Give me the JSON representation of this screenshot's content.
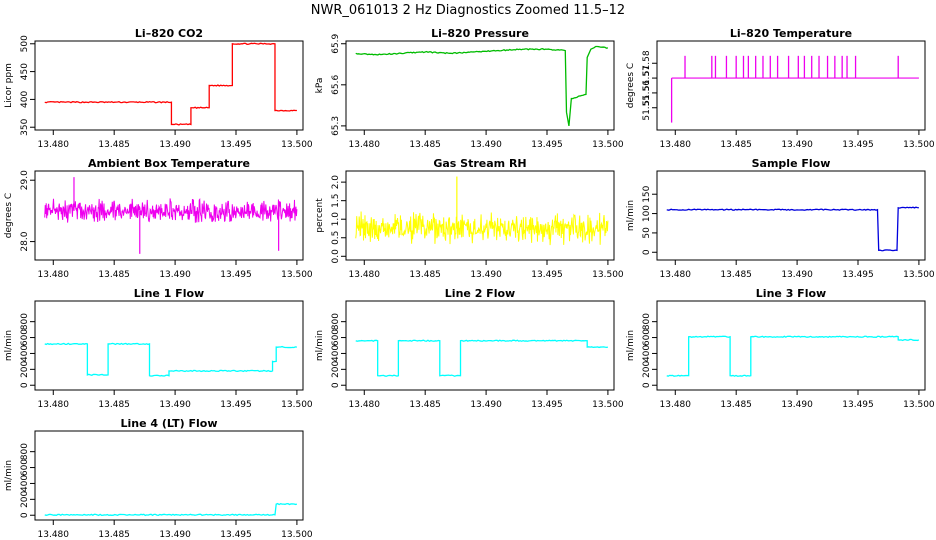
{
  "figure_title": "NWR_061013  2 Hz Diagnostics Zoomed 11.5–12",
  "x_ticks": [
    "13.480",
    "13.485",
    "13.490",
    "13.495",
    "13.500"
  ],
  "chart_data": [
    {
      "type": "line",
      "title": "Li–820 CO2",
      "ylabel": "Licor ppm",
      "color": "#ff0000",
      "xlim": [
        13.4785,
        13.5005
      ],
      "ylim": [
        345,
        505
      ],
      "yticks": [
        350,
        400,
        450,
        500
      ],
      "ytick_labels": [
        "350",
        "400",
        "450",
        "500"
      ],
      "x": [
        13.4793,
        13.4897,
        13.4897,
        13.4913,
        13.4913,
        13.4928,
        13.4928,
        13.4947,
        13.4947,
        13.4982,
        13.4982,
        13.5
      ],
      "y": [
        395,
        395,
        355,
        355,
        385,
        385,
        425,
        425,
        500,
        500,
        380,
        380
      ]
    },
    {
      "type": "line",
      "title": "Li–820 Pressure",
      "ylabel": "kPa",
      "color": "#00bb00",
      "xlim": [
        13.4785,
        13.5005
      ],
      "ylim": [
        65.27,
        65.92
      ],
      "yticks": [
        65.3,
        65.6,
        65.9
      ],
      "ytick_labels": [
        "65.3",
        "65.6",
        "65.9"
      ],
      "x": [
        13.4793,
        13.481,
        13.483,
        13.485,
        13.487,
        13.489,
        13.491,
        13.493,
        13.495,
        13.4965,
        13.4966,
        13.4968,
        13.497,
        13.4982,
        13.4983,
        13.4986,
        13.499,
        13.5
      ],
      "y": [
        65.83,
        65.82,
        65.83,
        65.84,
        65.83,
        65.84,
        65.85,
        65.86,
        65.86,
        65.85,
        65.4,
        65.3,
        65.5,
        65.53,
        65.8,
        65.86,
        65.88,
        65.87
      ]
    },
    {
      "type": "line",
      "title": "Li–820 Temperature",
      "ylabel": "degrees C",
      "color": "#ee00ee",
      "xlim": [
        13.4785,
        13.5005
      ],
      "ylim": [
        51.535,
        51.595
      ],
      "yticks": [
        51.55,
        51.56,
        51.57,
        51.58
      ],
      "ytick_labels": [
        "51.55",
        "51.56",
        "51.57",
        "51.58"
      ],
      "baseline": 51.57,
      "spikes_up": [
        13.4808,
        13.483,
        13.4833,
        13.4842,
        13.485,
        13.4856,
        13.486,
        13.4866,
        13.4872,
        13.4878,
        13.4884,
        13.4893,
        13.4901,
        13.4906,
        13.4912,
        13.4918,
        13.4925,
        13.4931,
        13.4937,
        13.4941,
        13.4948,
        13.4983
      ],
      "spikes_down": [
        13.4797
      ],
      "spike_top": 51.585,
      "spike_bottom": 51.54
    },
    {
      "type": "line",
      "title": "Ambient Box Temperature",
      "ylabel": "degrees C",
      "color": "#ee00ee",
      "xlim": [
        13.4785,
        13.5005
      ],
      "ylim": [
        27.7,
        29.15
      ],
      "yticks": [
        28.0,
        29.0
      ],
      "ytick_labels": [
        "28.0",
        "29.0"
      ],
      "mean": 28.5,
      "noise": 0.16,
      "outliers_x": [
        13.4817,
        13.4871,
        13.4985
      ],
      "outliers_y": [
        29.05,
        27.8,
        27.85
      ]
    },
    {
      "type": "line",
      "title": "Gas Stream RH",
      "ylabel": "percent",
      "color": "#ffff00",
      "xlim": [
        13.4785,
        13.5005
      ],
      "ylim": [
        -0.1,
        2.3
      ],
      "yticks": [
        0.0,
        0.5,
        1.0,
        1.5,
        2.0
      ],
      "ytick_labels": [
        "0.0",
        "0.5",
        "1.0",
        "1.5",
        "2.0"
      ],
      "mean": 0.75,
      "noise": 0.35,
      "outliers_x": [
        13.4876
      ],
      "outliers_y": [
        2.15
      ]
    },
    {
      "type": "line",
      "title": "Sample Flow",
      "ylabel": "ml/min",
      "color": "#0000dd",
      "xlim": [
        13.4785,
        13.5005
      ],
      "ylim": [
        -20,
        210
      ],
      "yticks": [
        0,
        50,
        100,
        150
      ],
      "ytick_labels": [
        "0",
        "50",
        "100",
        "150"
      ],
      "x": [
        13.4793,
        13.4966,
        13.4967,
        13.4982,
        13.4983,
        13.5
      ],
      "y": [
        110,
        110,
        5,
        5,
        115,
        115
      ]
    },
    {
      "type": "line",
      "title": "Line 1 Flow",
      "ylabel": "ml/min",
      "color": "#00ffff",
      "xlim": [
        13.4785,
        13.5005
      ],
      "ylim": [
        -60,
        1060
      ],
      "yticks": [
        0,
        200,
        400,
        600,
        800
      ],
      "ytick_labels": [
        "0",
        "200",
        "400",
        "600",
        "800"
      ],
      "x": [
        13.4793,
        13.4828,
        13.4828,
        13.4845,
        13.4845,
        13.4879,
        13.4879,
        13.4895,
        13.4895,
        13.498,
        13.498,
        13.4983,
        13.4983,
        13.5
      ],
      "y": [
        520,
        520,
        130,
        130,
        520,
        520,
        120,
        120,
        180,
        180,
        300,
        300,
        480,
        480
      ]
    },
    {
      "type": "line",
      "title": "Line 2 Flow",
      "ylabel": "ml/min",
      "color": "#00ffff",
      "xlim": [
        13.4785,
        13.5005
      ],
      "ylim": [
        -60,
        1060
      ],
      "yticks": [
        0,
        200,
        400,
        600,
        800
      ],
      "ytick_labels": [
        "0",
        "200",
        "400",
        "600",
        "800"
      ],
      "x": [
        13.4793,
        13.4811,
        13.4811,
        13.4828,
        13.4828,
        13.4862,
        13.4862,
        13.4879,
        13.4879,
        13.4983,
        13.4983,
        13.5
      ],
      "y": [
        560,
        560,
        120,
        120,
        560,
        560,
        120,
        120,
        560,
        560,
        480,
        480
      ]
    },
    {
      "type": "line",
      "title": "Line 3 Flow",
      "ylabel": "ml/min",
      "color": "#00ffff",
      "xlim": [
        13.4785,
        13.5005
      ],
      "ylim": [
        -60,
        1060
      ],
      "yticks": [
        0,
        200,
        400,
        600,
        800
      ],
      "ytick_labels": [
        "0",
        "200",
        "400",
        "600",
        "800"
      ],
      "x": [
        13.4793,
        13.4811,
        13.4811,
        13.4845,
        13.4845,
        13.4862,
        13.4862,
        13.4983,
        13.4983,
        13.5
      ],
      "y": [
        120,
        120,
        610,
        610,
        120,
        120,
        610,
        610,
        570,
        570
      ]
    },
    {
      "type": "line",
      "title": "Line 4 (LT) Flow",
      "ylabel": "ml/min",
      "color": "#00ffff",
      "xlim": [
        13.4785,
        13.5005
      ],
      "ylim": [
        -60,
        1060
      ],
      "yticks": [
        0,
        200,
        400,
        600,
        800
      ],
      "ytick_labels": [
        "0",
        "200",
        "400",
        "600",
        "800"
      ],
      "x": [
        13.4793,
        13.4982,
        13.4982,
        13.4983,
        13.4983,
        13.5
      ],
      "y": [
        5,
        5,
        5,
        140,
        140,
        140
      ]
    }
  ]
}
